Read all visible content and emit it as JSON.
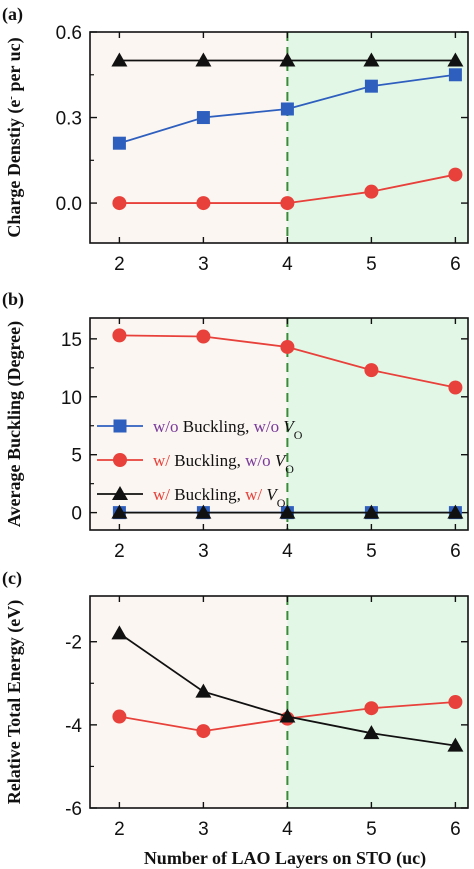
{
  "colors": {
    "left_region": "#fbf6f1",
    "right_region": "#e3f7e6",
    "divider": "#3a8a3a",
    "series": [
      "#2e5fbf",
      "#e8403a",
      "#111111"
    ]
  },
  "chart_data": [
    {
      "type": "line",
      "panel_label": "(a)",
      "ylabel": "Charge Denstiy (e",
      "ylabel_sup": "-",
      "ylabel_tail": " per uc)",
      "x": [
        2,
        3,
        4,
        5,
        6
      ],
      "xlim": [
        1.65,
        6.15
      ],
      "ylim": [
        -0.14,
        0.6
      ],
      "xticks": [
        2,
        3,
        4,
        5,
        6
      ],
      "yticks": [
        0.0,
        0.3,
        0.6
      ],
      "ytick_labels": [
        "0.0",
        "0.3",
        "0.6"
      ],
      "divider_x": 4,
      "series": [
        {
          "marker": "square",
          "values": [
            0.21,
            0.3,
            0.33,
            0.41,
            0.45
          ]
        },
        {
          "marker": "circle",
          "values": [
            0.0,
            0.0,
            0.0,
            0.04,
            0.1
          ]
        },
        {
          "marker": "triangle",
          "values": [
            0.5,
            0.5,
            0.5,
            0.5,
            0.5
          ]
        }
      ]
    },
    {
      "type": "line",
      "panel_label": "(b)",
      "ylabel": "Average Buckling (Degree)",
      "x": [
        2,
        3,
        4,
        5,
        6
      ],
      "xlim": [
        1.65,
        6.15
      ],
      "ylim": [
        -1.5,
        16.8
      ],
      "xticks": [
        2,
        3,
        4,
        5,
        6
      ],
      "yticks": [
        0,
        5,
        10,
        15
      ],
      "ytick_labels": [
        "0",
        "5",
        "10",
        "15"
      ],
      "divider_x": 4,
      "legend_position": "center-left",
      "series": [
        {
          "marker": "square",
          "values": [
            0,
            0,
            0,
            0,
            0
          ]
        },
        {
          "marker": "circle",
          "values": [
            15.3,
            15.2,
            14.3,
            12.3,
            10.8
          ]
        },
        {
          "marker": "triangle",
          "values": [
            0,
            0,
            0,
            0,
            0
          ]
        }
      ],
      "legend": [
        {
          "prefix": "w/o",
          "middle": " Buckling, ",
          "suffix": "w/o",
          "var": "V",
          "sub": "O"
        },
        {
          "prefix": "w/",
          "middle": "  Buckling, ",
          "suffix": "w/o",
          "var": "V",
          "sub": "O"
        },
        {
          "prefix": "w/",
          "middle": "  Buckling, ",
          "suffix": "w/",
          "var": "V",
          "sub": "O"
        }
      ],
      "legend_colors": {
        "prefix": [
          "#7a3a9a",
          "#e8403a",
          "#e8403a"
        ],
        "suffix": [
          "#7a3a9a",
          "#7a3a9a",
          "#e8403a"
        ]
      }
    },
    {
      "type": "line",
      "panel_label": "(c)",
      "ylabel": "Relative Total Energy (eV)",
      "xlabel": "Number of LAO Layers on STO (uc)",
      "x": [
        2,
        3,
        4,
        5,
        6
      ],
      "xlim": [
        1.65,
        6.15
      ],
      "ylim": [
        -6.0,
        -0.9
      ],
      "xticks": [
        2,
        3,
        4,
        5,
        6
      ],
      "yticks": [
        -6,
        -4,
        -2
      ],
      "ytick_labels": [
        "-6",
        "-4",
        "-2"
      ],
      "divider_x": 4,
      "series": [
        {
          "marker": "circle",
          "values": [
            -3.8,
            -4.15,
            -3.85,
            -3.6,
            -3.45
          ]
        },
        {
          "marker": "triangle",
          "values": [
            -1.8,
            -3.2,
            -3.8,
            -4.2,
            -4.5
          ]
        }
      ]
    }
  ]
}
